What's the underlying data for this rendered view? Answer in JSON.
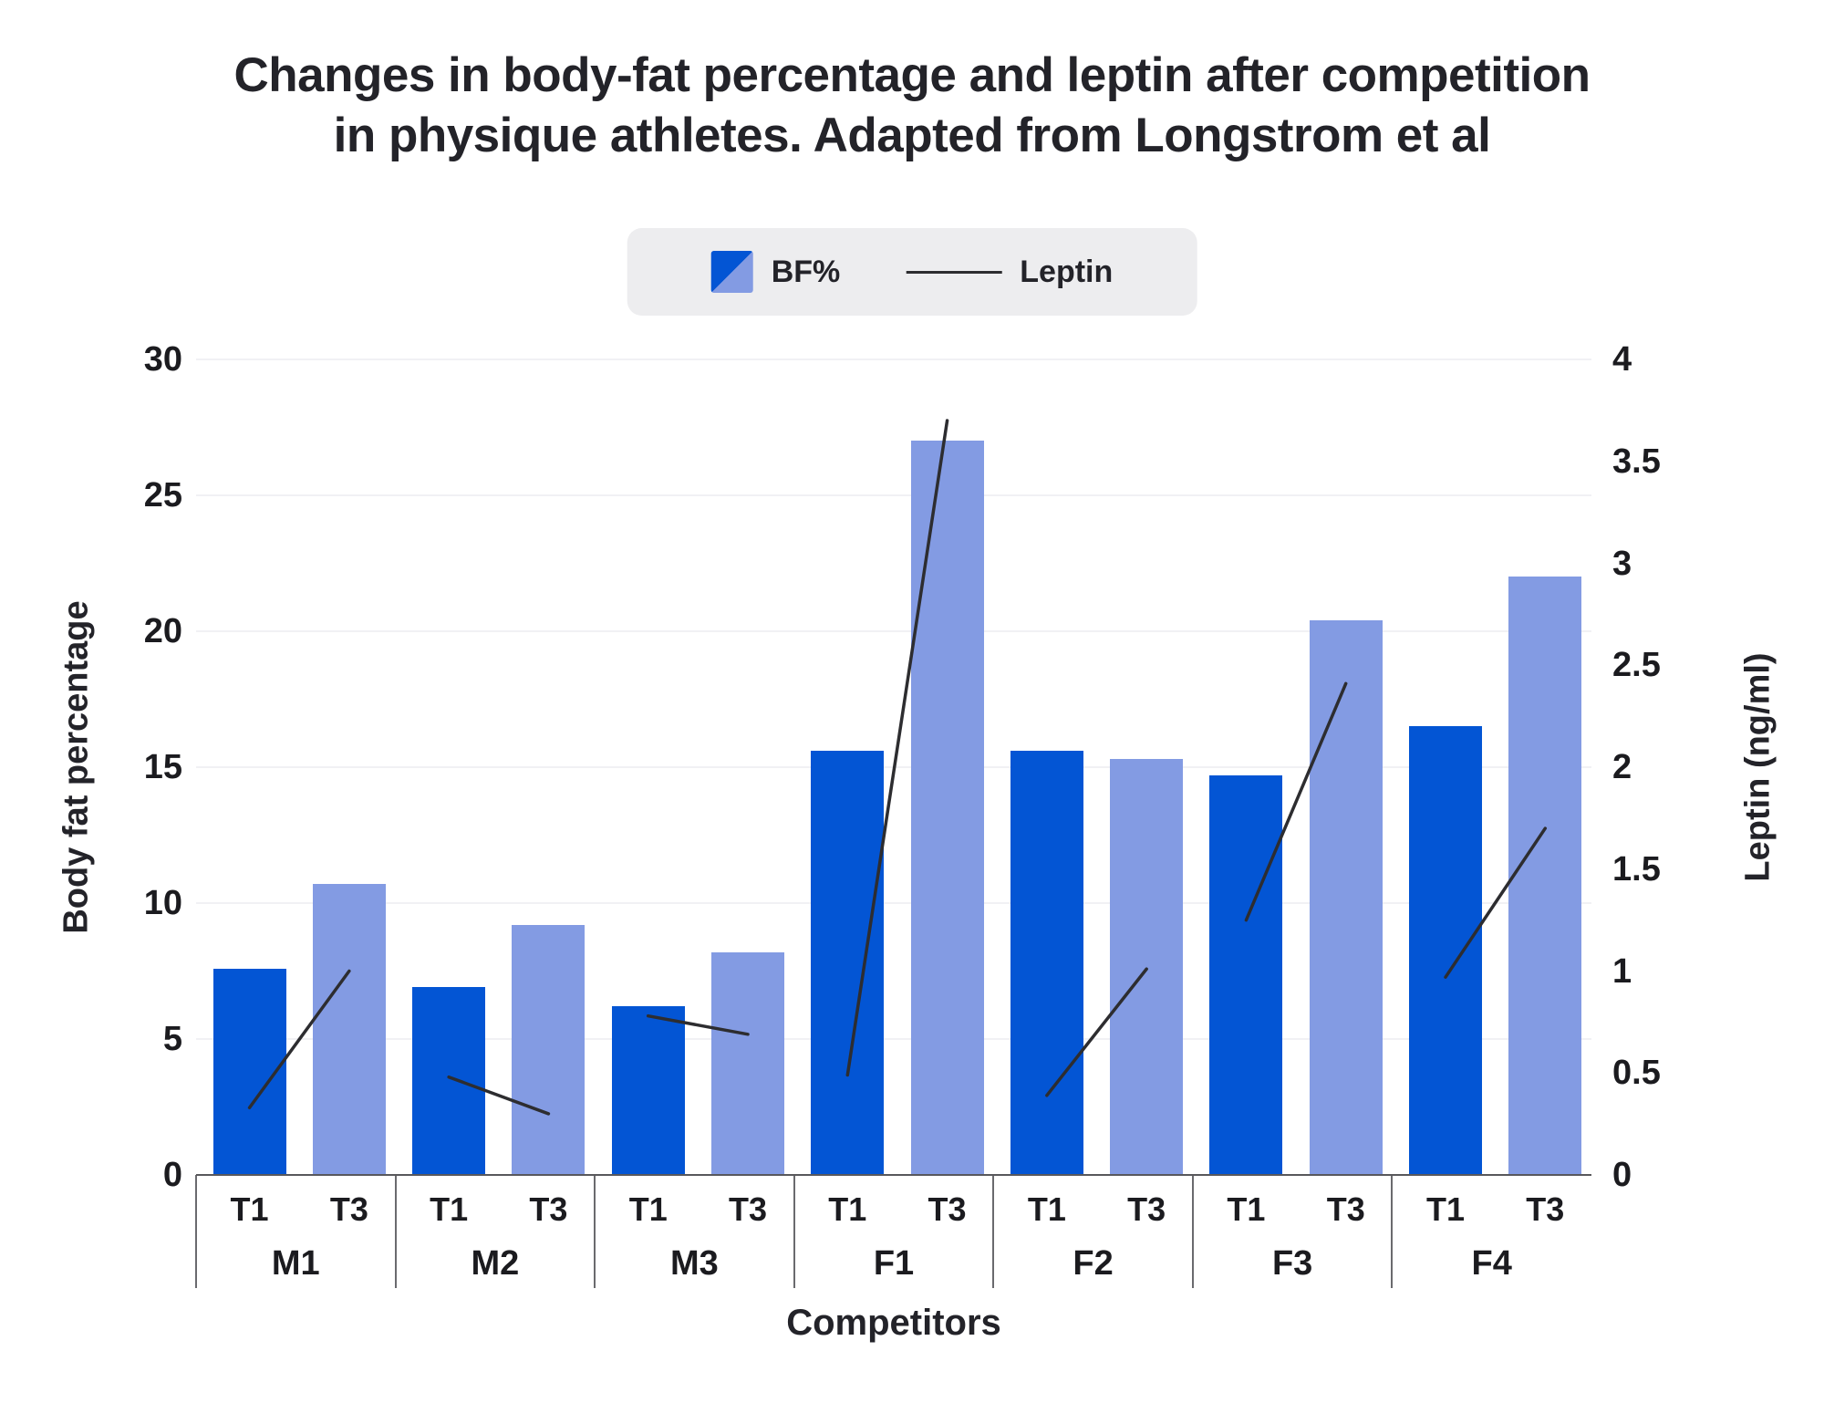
{
  "title": {
    "line1": "Changes in body-fat percentage and leptin after competition",
    "line2": "in physique athletes. Adapted from Longstrom et al"
  },
  "legend": {
    "bf_label": "BF%",
    "leptin_label": "Leptin"
  },
  "axes": {
    "left": {
      "title": "Body fat percentage"
    },
    "right": {
      "title": "Leptin (ng/ml)"
    },
    "x": {
      "title": "Competitors"
    }
  },
  "colors": {
    "bar_t1": "#0355d4",
    "bar_t3": "#839be3",
    "leptin_line": "#2d2d30",
    "grid": "#f1f1f4",
    "axis_line": "#58585c",
    "separator": "#6a6a6e",
    "legend_bg": "#ededef",
    "text": "#1b1b1f"
  },
  "chart_data": {
    "type": "bar",
    "subtype": "grouped bars with dual-axis line overlay",
    "title": "Changes in body-fat percentage and leptin after competition in physique athletes. Adapted from Longstrom et al",
    "categories": [
      "M1",
      "M2",
      "M3",
      "F1",
      "F2",
      "F3",
      "F4"
    ],
    "bar_sub_labels": [
      "T1",
      "T3"
    ],
    "bar_series": [
      {
        "name": "BF% T1",
        "axis": "left",
        "values": [
          7.6,
          6.9,
          6.2,
          15.6,
          15.6,
          14.7,
          16.5
        ]
      },
      {
        "name": "BF% T3",
        "axis": "left",
        "values": [
          10.7,
          9.2,
          8.2,
          27.0,
          15.3,
          20.4,
          22.0
        ]
      }
    ],
    "line_series": [
      {
        "name": "Leptin T1",
        "axis": "right",
        "values": [
          0.33,
          0.48,
          0.78,
          0.49,
          0.39,
          1.25,
          0.97
        ]
      },
      {
        "name": "Leptin T3",
        "axis": "right",
        "values": [
          1.0,
          0.3,
          0.69,
          3.7,
          1.01,
          2.41,
          1.7
        ]
      }
    ],
    "left_axis": {
      "label": "Body fat percentage",
      "range": [
        0,
        30
      ],
      "ticks": [
        0,
        5,
        10,
        15,
        20,
        25,
        30
      ]
    },
    "right_axis": {
      "label": "Leptin (ng/ml)",
      "range": [
        0,
        4
      ],
      "ticks": [
        0,
        0.5,
        1,
        1.5,
        2,
        2.5,
        3,
        3.5,
        4
      ]
    },
    "x_axis": {
      "label": "Competitors"
    },
    "legend_entries": [
      "BF%",
      "Leptin"
    ],
    "legend_position": "top",
    "grid": "horizontal gridlines at left-axis ticks"
  }
}
